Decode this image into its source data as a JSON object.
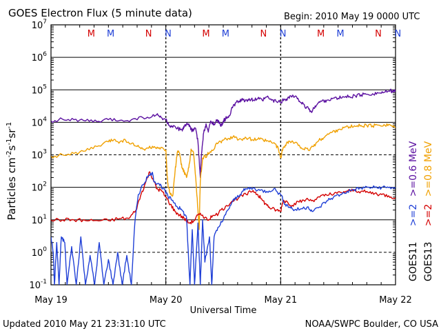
{
  "chart_data": {
    "type": "line",
    "title": "GOES Electron Flux (5 minute data)",
    "begin_label": "Begin: 2010 May 19 0000 UTC",
    "xlabel": "Universal Time",
    "ylabel_main": "Particles cm",
    "ylabel_exp1": "-2",
    "ylabel_s": "s",
    "ylabel_exp2": "-1",
    "ylabel_sr": "sr",
    "ylabel_exp3": "-1",
    "y_scale": "log",
    "ylim": [
      0.1,
      10000000.0
    ],
    "y_ticks": [
      {
        "base": "10",
        "exp": "-1"
      },
      {
        "base": "10",
        "exp": "0"
      },
      {
        "base": "10",
        "exp": "1"
      },
      {
        "base": "10",
        "exp": "2"
      },
      {
        "base": "10",
        "exp": "3"
      },
      {
        "base": "10",
        "exp": "4"
      },
      {
        "base": "10",
        "exp": "5"
      },
      {
        "base": "10",
        "exp": "6"
      },
      {
        "base": "10",
        "exp": "7"
      }
    ],
    "x_ticks": [
      "May 19",
      "May 20",
      "May 21",
      "May 22"
    ],
    "mn_markers": [
      {
        "label": "M",
        "day": 0.35,
        "color": "#d40000"
      },
      {
        "label": "M",
        "day": 0.52,
        "color": "#1f3fd6"
      },
      {
        "label": "N",
        "day": 0.85,
        "color": "#d40000"
      },
      {
        "label": "N",
        "day": 1.02,
        "color": "#1f3fd6"
      },
      {
        "label": "M",
        "day": 1.35,
        "color": "#d40000"
      },
      {
        "label": "M",
        "day": 1.52,
        "color": "#1f3fd6"
      },
      {
        "label": "N",
        "day": 1.85,
        "color": "#d40000"
      },
      {
        "label": "N",
        "day": 2.02,
        "color": "#1f3fd6"
      },
      {
        "label": "M",
        "day": 2.35,
        "color": "#d40000"
      },
      {
        "label": "M",
        "day": 2.52,
        "color": "#1f3fd6"
      },
      {
        "label": "N",
        "day": 2.85,
        "color": "#d40000"
      },
      {
        "label": "N",
        "day": 3.02,
        "color": "#1f3fd6"
      }
    ],
    "series": [
      {
        "key": "goes11_06",
        "color": "#5a0fa0",
        "points": [
          [
            0.0,
            11000
          ],
          [
            0.1,
            12500
          ],
          [
            0.2,
            12000
          ],
          [
            0.3,
            11000
          ],
          [
            0.4,
            10500
          ],
          [
            0.5,
            12000
          ],
          [
            0.6,
            11500
          ],
          [
            0.7,
            12000
          ],
          [
            0.8,
            14000
          ],
          [
            0.88,
            15000
          ],
          [
            0.92,
            17000
          ],
          [
            0.96,
            14000
          ],
          [
            1.0,
            12000
          ],
          [
            1.03,
            8000
          ],
          [
            1.06,
            7000
          ],
          [
            1.1,
            6500
          ],
          [
            1.14,
            6000
          ],
          [
            1.16,
            7000
          ],
          [
            1.18,
            8500
          ],
          [
            1.2,
            9000
          ],
          [
            1.22,
            6000
          ],
          [
            1.24,
            5500
          ],
          [
            1.26,
            6500
          ],
          [
            1.28,
            2500
          ],
          [
            1.3,
            200
          ],
          [
            1.31,
            1000
          ],
          [
            1.33,
            5000
          ],
          [
            1.35,
            9000
          ],
          [
            1.37,
            5000
          ],
          [
            1.39,
            11000
          ],
          [
            1.42,
            9000
          ],
          [
            1.45,
            12000
          ],
          [
            1.48,
            7500
          ],
          [
            1.5,
            11000
          ],
          [
            1.52,
            13000
          ],
          [
            1.55,
            16000
          ],
          [
            1.58,
            28000
          ],
          [
            1.61,
            40000
          ],
          [
            1.64,
            45000
          ],
          [
            1.67,
            48000
          ],
          [
            1.7,
            50000
          ],
          [
            1.73,
            50000
          ],
          [
            1.76,
            48000
          ],
          [
            1.8,
            53000
          ],
          [
            1.84,
            47000
          ],
          [
            1.88,
            60000
          ],
          [
            1.92,
            48000
          ],
          [
            1.96,
            44000
          ],
          [
            2.0,
            42000
          ],
          [
            2.03,
            50000
          ],
          [
            2.06,
            55000
          ],
          [
            2.09,
            65000
          ],
          [
            2.12,
            60000
          ],
          [
            2.15,
            55000
          ],
          [
            2.18,
            40000
          ],
          [
            2.21,
            30000
          ],
          [
            2.24,
            28000
          ],
          [
            2.27,
            20000
          ],
          [
            2.3,
            32000
          ],
          [
            2.33,
            40000
          ],
          [
            2.36,
            45000
          ],
          [
            2.4,
            48000
          ],
          [
            2.45,
            53000
          ],
          [
            2.5,
            55000
          ],
          [
            2.55,
            60000
          ],
          [
            2.6,
            62000
          ],
          [
            2.65,
            65000
          ],
          [
            2.7,
            70000
          ],
          [
            2.75,
            73000
          ],
          [
            2.8,
            76000
          ],
          [
            2.85,
            80000
          ],
          [
            2.9,
            84000
          ],
          [
            2.95,
            90000
          ],
          [
            2.98,
            95000
          ],
          [
            3.0,
            85000
          ]
        ]
      },
      {
        "key": "goes11_08",
        "color": "#f0a000",
        "points": [
          [
            0.0,
            900
          ],
          [
            0.1,
            1000
          ],
          [
            0.2,
            1100
          ],
          [
            0.3,
            1300
          ],
          [
            0.4,
            1800
          ],
          [
            0.5,
            2500
          ],
          [
            0.55,
            3000
          ],
          [
            0.6,
            2500
          ],
          [
            0.65,
            2800
          ],
          [
            0.7,
            2200
          ],
          [
            0.75,
            1800
          ],
          [
            0.8,
            1500
          ],
          [
            0.85,
            1600
          ],
          [
            0.9,
            1800
          ],
          [
            0.95,
            1500
          ],
          [
            1.0,
            1400
          ],
          [
            1.01,
            300
          ],
          [
            1.02,
            100
          ],
          [
            1.04,
            60
          ],
          [
            1.06,
            55
          ],
          [
            1.08,
            300
          ],
          [
            1.1,
            1200
          ],
          [
            1.12,
            1100
          ],
          [
            1.14,
            400
          ],
          [
            1.16,
            300
          ],
          [
            1.18,
            200
          ],
          [
            1.2,
            400
          ],
          [
            1.22,
            1500
          ],
          [
            1.24,
            1200
          ],
          [
            1.26,
            200
          ],
          [
            1.28,
            20
          ],
          [
            1.29,
            5
          ],
          [
            1.3,
            150
          ],
          [
            1.32,
            800
          ],
          [
            1.36,
            1000
          ],
          [
            1.4,
            1400
          ],
          [
            1.45,
            2200
          ],
          [
            1.5,
            2800
          ],
          [
            1.55,
            3200
          ],
          [
            1.6,
            3400
          ],
          [
            1.65,
            3100
          ],
          [
            1.7,
            3300
          ],
          [
            1.75,
            2900
          ],
          [
            1.8,
            3000
          ],
          [
            1.85,
            2800
          ],
          [
            1.9,
            2500
          ],
          [
            1.95,
            2200
          ],
          [
            1.98,
            1500
          ],
          [
            2.0,
            800
          ],
          [
            2.02,
            1600
          ],
          [
            2.05,
            2300
          ],
          [
            2.08,
            2600
          ],
          [
            2.12,
            2300
          ],
          [
            2.16,
            2000
          ],
          [
            2.2,
            1500
          ],
          [
            2.24,
            1400
          ],
          [
            2.28,
            1800
          ],
          [
            2.32,
            2500
          ],
          [
            2.36,
            3200
          ],
          [
            2.4,
            4000
          ],
          [
            2.45,
            5000
          ],
          [
            2.5,
            6000
          ],
          [
            2.55,
            6800
          ],
          [
            2.6,
            7200
          ],
          [
            2.65,
            7500
          ],
          [
            2.7,
            8000
          ],
          [
            2.75,
            8000
          ],
          [
            2.8,
            7800
          ],
          [
            2.85,
            8200
          ],
          [
            2.9,
            8500
          ],
          [
            2.95,
            8400
          ],
          [
            3.0,
            7000
          ]
        ]
      },
      {
        "key": "goes13_2",
        "color": "#d40000",
        "points": [
          [
            0.0,
            10
          ],
          [
            0.1,
            10
          ],
          [
            0.2,
            10
          ],
          [
            0.3,
            9.5
          ],
          [
            0.4,
            9.5
          ],
          [
            0.5,
            9.5
          ],
          [
            0.6,
            11
          ],
          [
            0.68,
            11
          ],
          [
            0.74,
            20
          ],
          [
            0.78,
            55
          ],
          [
            0.82,
            130
          ],
          [
            0.86,
            300
          ],
          [
            0.9,
            150
          ],
          [
            0.92,
            90
          ],
          [
            0.96,
            80
          ],
          [
            1.0,
            50
          ],
          [
            1.04,
            30
          ],
          [
            1.08,
            18
          ],
          [
            1.12,
            14
          ],
          [
            1.16,
            11
          ],
          [
            1.2,
            8
          ],
          [
            1.24,
            9
          ],
          [
            1.28,
            14
          ],
          [
            1.32,
            14
          ],
          [
            1.36,
            10
          ],
          [
            1.4,
            12
          ],
          [
            1.46,
            16
          ],
          [
            1.52,
            26
          ],
          [
            1.58,
            38
          ],
          [
            1.64,
            50
          ],
          [
            1.7,
            60
          ],
          [
            1.76,
            80
          ],
          [
            1.8,
            60
          ],
          [
            1.84,
            40
          ],
          [
            1.88,
            28
          ],
          [
            1.92,
            22
          ],
          [
            1.96,
            20
          ],
          [
            2.0,
            18
          ],
          [
            2.02,
            40
          ],
          [
            2.06,
            35
          ],
          [
            2.1,
            28
          ],
          [
            2.16,
            35
          ],
          [
            2.22,
            42
          ],
          [
            2.28,
            40
          ],
          [
            2.34,
            50
          ],
          [
            2.4,
            58
          ],
          [
            2.46,
            60
          ],
          [
            2.52,
            70
          ],
          [
            2.58,
            75
          ],
          [
            2.64,
            82
          ],
          [
            2.7,
            75
          ],
          [
            2.76,
            70
          ],
          [
            2.82,
            65
          ],
          [
            2.88,
            60
          ],
          [
            2.94,
            55
          ],
          [
            3.0,
            48
          ]
        ]
      },
      {
        "key": "goes11_2",
        "color": "#1f3fd6",
        "points": [
          [
            0.0,
            3
          ],
          [
            0.02,
            1
          ],
          [
            0.03,
            0.1
          ],
          [
            0.05,
            2
          ],
          [
            0.07,
            0.1
          ],
          [
            0.09,
            3
          ],
          [
            0.12,
            2
          ],
          [
            0.14,
            0.1
          ],
          [
            0.18,
            1.5
          ],
          [
            0.22,
            0.1
          ],
          [
            0.26,
            3
          ],
          [
            0.3,
            0.1
          ],
          [
            0.34,
            0.8
          ],
          [
            0.38,
            0.1
          ],
          [
            0.42,
            2
          ],
          [
            0.46,
            0.1
          ],
          [
            0.5,
            0.6
          ],
          [
            0.54,
            0.1
          ],
          [
            0.58,
            1
          ],
          [
            0.62,
            0.1
          ],
          [
            0.66,
            0.8
          ],
          [
            0.7,
            0.1
          ],
          [
            0.73,
            8
          ],
          [
            0.76,
            60
          ],
          [
            0.8,
            120
          ],
          [
            0.84,
            200
          ],
          [
            0.88,
            280
          ],
          [
            0.9,
            150
          ],
          [
            0.94,
            130
          ],
          [
            0.98,
            90
          ],
          [
            1.02,
            50
          ],
          [
            1.06,
            40
          ],
          [
            1.1,
            25
          ],
          [
            1.14,
            20
          ],
          [
            1.18,
            12
          ],
          [
            1.21,
            0.1
          ],
          [
            1.23,
            5
          ],
          [
            1.25,
            0.1
          ],
          [
            1.28,
            8
          ],
          [
            1.3,
            0.1
          ],
          [
            1.32,
            10
          ],
          [
            1.34,
            0.5
          ],
          [
            1.38,
            3
          ],
          [
            1.4,
            0.1
          ],
          [
            1.42,
            3
          ],
          [
            1.46,
            6
          ],
          [
            1.5,
            10
          ],
          [
            1.54,
            20
          ],
          [
            1.58,
            36
          ],
          [
            1.62,
            50
          ],
          [
            1.66,
            70
          ],
          [
            1.7,
            90
          ],
          [
            1.76,
            95
          ],
          [
            1.82,
            80
          ],
          [
            1.88,
            75
          ],
          [
            1.94,
            90
          ],
          [
            2.0,
            60
          ],
          [
            2.04,
            30
          ],
          [
            2.08,
            25
          ],
          [
            2.12,
            20
          ],
          [
            2.18,
            22
          ],
          [
            2.24,
            25
          ],
          [
            2.28,
            18
          ],
          [
            2.34,
            25
          ],
          [
            2.4,
            38
          ],
          [
            2.46,
            50
          ],
          [
            2.52,
            60
          ],
          [
            2.58,
            75
          ],
          [
            2.64,
            85
          ],
          [
            2.7,
            95
          ],
          [
            2.76,
            100
          ],
          [
            2.82,
            98
          ],
          [
            2.88,
            100
          ],
          [
            2.94,
            98
          ],
          [
            3.0,
            100
          ]
        ]
      }
    ],
    "legend": [
      {
        "text": "GOES11",
        "color": "#000000"
      },
      {
        "text": ">=2",
        "color": "#1f3fd6"
      },
      {
        "text": ">=0.6 MeV",
        "color": "#5a0fa0"
      },
      {
        "text": "GOES13",
        "color": "#000000"
      },
      {
        "text": ">=2",
        "color": "#d40000"
      },
      {
        "text": ">=0.8 MeV",
        "color": "#f0a000"
      }
    ],
    "legend_placement": "right"
  },
  "footer": {
    "updated": "Updated 2010 May 21 23:31:10 UTC",
    "source": "NOAA/SWPC Boulder, CO USA"
  }
}
